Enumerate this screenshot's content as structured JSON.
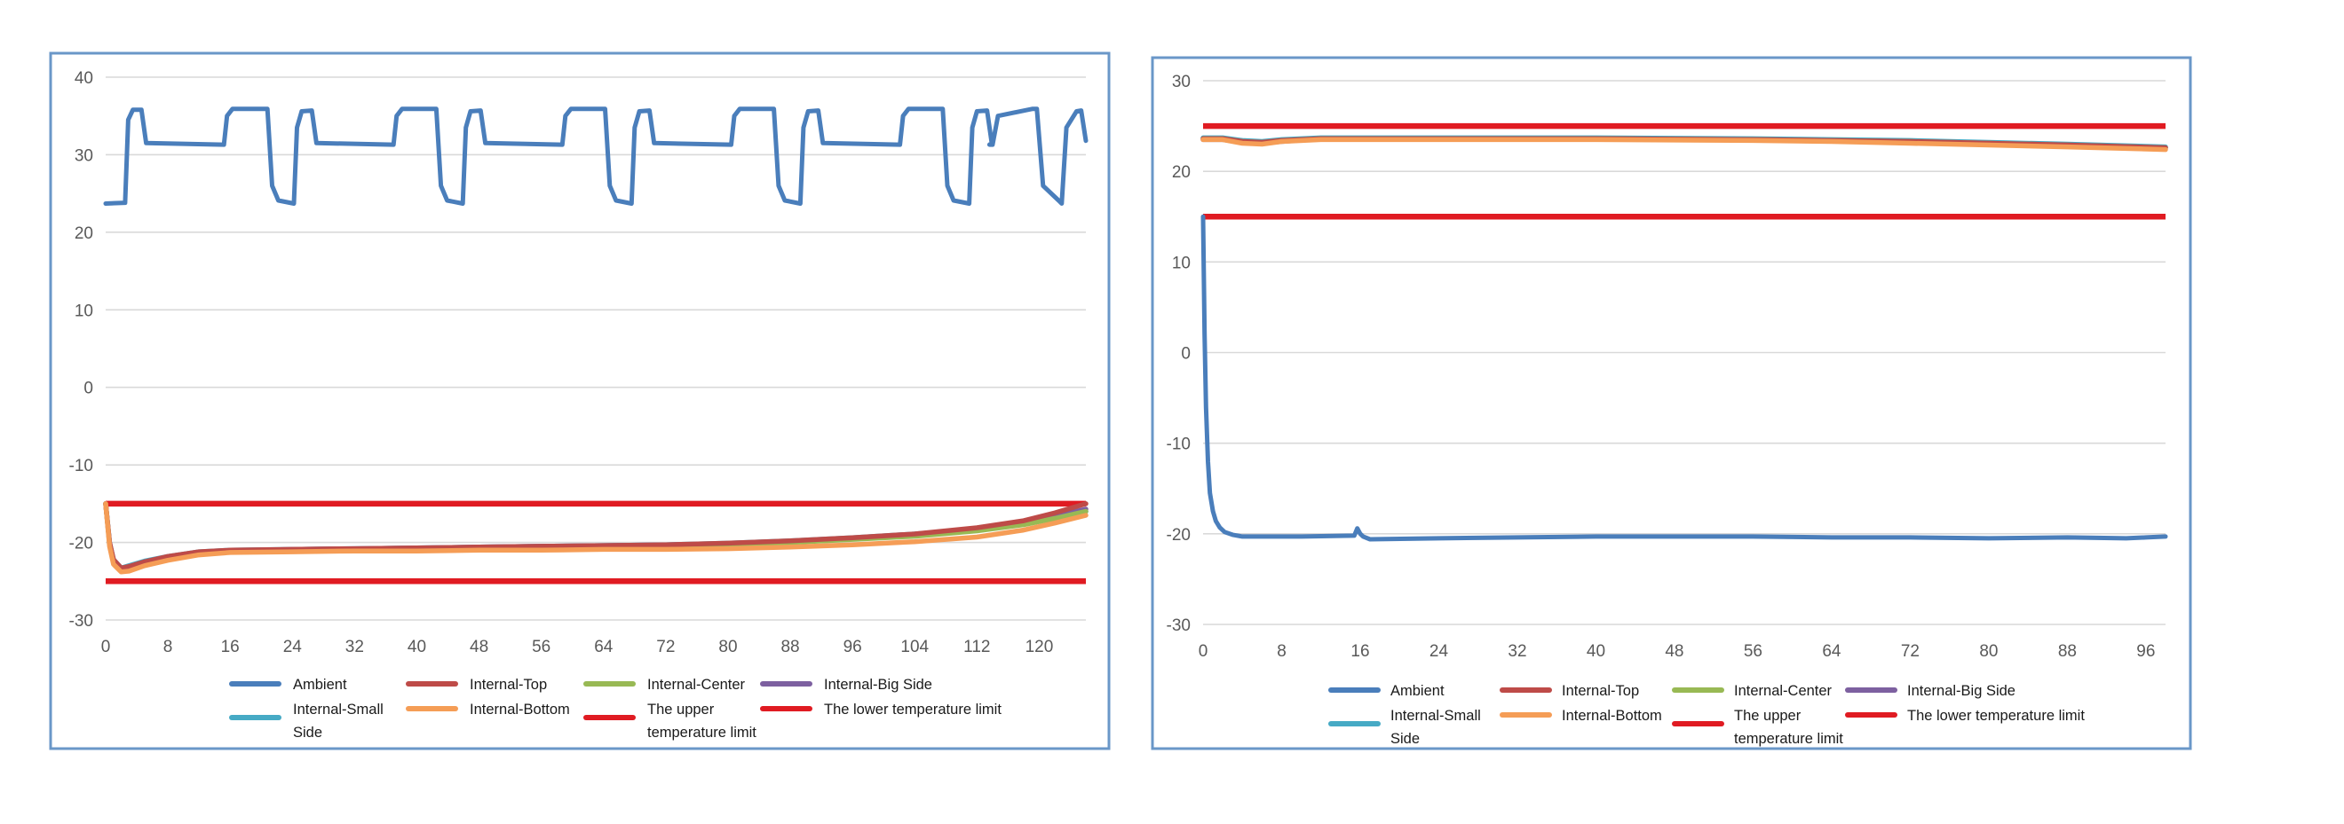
{
  "chart_data": [
    {
      "type": "line",
      "title": "",
      "xlabel": "",
      "ylabel": "",
      "xlim": [
        0,
        126
      ],
      "ylim": [
        -30,
        40
      ],
      "x_ticks": [
        "0",
        "8",
        "16",
        "24",
        "32",
        "40",
        "48",
        "56",
        "64",
        "72",
        "80",
        "88",
        "96",
        "104",
        "112",
        "120"
      ],
      "y_ticks": [
        "40",
        "30",
        "20",
        "10",
        "0",
        "-10",
        "-20",
        "-30"
      ],
      "grid": true,
      "legend_position": "bottom",
      "series": [
        {
          "name": "Ambient",
          "color": "#4a7ebb",
          "x": [
            0,
            2.5,
            2.9,
            3.5,
            4.6,
            5.2,
            15.2,
            15.6,
            16.3,
            20.8,
            21.4,
            22.2,
            24.2,
            24.6,
            25.2,
            26.5,
            27.1,
            37,
            37.4,
            38.1,
            42.5,
            43.1,
            43.9,
            45.9,
            46.3,
            46.9,
            48.2,
            48.8,
            58.7,
            59.1,
            59.8,
            64.2,
            64.8,
            65.6,
            67.6,
            68,
            68.6,
            69.9,
            70.5,
            80.4,
            80.8,
            81.5,
            85.9,
            86.5,
            87.3,
            89.3,
            89.7,
            90.3,
            91.6,
            92.2,
            102.1,
            102.5,
            103.2,
            107.6,
            108.2,
            109,
            111,
            111.4,
            112,
            113.3,
            113.9,
            113.6,
            114,
            114.7,
            119.1,
            119.7,
            120.5,
            122.5,
            122.9,
            123.5,
            124.8,
            125.4,
            126
          ],
          "y": [
            23.7,
            23.8,
            34.5,
            35.8,
            35.8,
            31.5,
            31.3,
            35,
            35.9,
            35.9,
            26,
            24.1,
            23.7,
            33.5,
            35.6,
            35.7,
            31.5,
            31.3,
            35,
            35.9,
            35.9,
            26,
            24.1,
            23.7,
            33.5,
            35.6,
            35.7,
            31.5,
            31.3,
            35,
            35.9,
            35.9,
            26,
            24.1,
            23.7,
            33.5,
            35.6,
            35.7,
            31.5,
            31.3,
            35,
            35.9,
            35.9,
            26,
            24.1,
            23.7,
            33.5,
            35.6,
            35.7,
            31.5,
            31.3,
            35,
            35.9,
            35.9,
            26,
            24.1,
            23.7,
            33.5,
            35.6,
            35.7,
            31.5,
            31.3,
            31.3,
            35,
            35.9,
            35.9,
            26,
            24.1,
            23.7,
            33.5,
            35.6,
            35.7,
            31.8
          ]
        },
        {
          "name": "Internal-Top",
          "color": "#be4b48",
          "x": [
            0,
            0.5,
            1,
            2,
            3,
            5,
            8,
            12,
            16,
            24,
            32,
            40,
            48,
            56,
            64,
            72,
            80,
            88,
            96,
            104,
            112,
            118,
            122,
            126
          ],
          "y": [
            -15,
            -20,
            -22.2,
            -23.3,
            -23.1,
            -22.5,
            -21.8,
            -21.2,
            -21,
            -20.9,
            -20.8,
            -20.7,
            -20.6,
            -20.5,
            -20.4,
            -20.3,
            -20.1,
            -19.8,
            -19.4,
            -18.9,
            -18.1,
            -17.2,
            -16.2,
            -15
          ]
        },
        {
          "name": "Internal-Center",
          "color": "#98b954",
          "x": [
            0,
            0.5,
            1,
            2,
            3,
            5,
            8,
            12,
            16,
            24,
            32,
            40,
            48,
            56,
            64,
            72,
            80,
            88,
            96,
            104,
            112,
            118,
            122,
            126
          ],
          "y": [
            -15,
            -20.2,
            -22.4,
            -23.5,
            -23.3,
            -22.7,
            -22,
            -21.3,
            -21.1,
            -21,
            -20.9,
            -20.8,
            -20.7,
            -20.6,
            -20.5,
            -20.4,
            -20.3,
            -20,
            -19.6,
            -19.2,
            -18.5,
            -17.7,
            -16.9,
            -16
          ]
        },
        {
          "name": "Internal-Big Side",
          "color": "#7d60a0",
          "x": [
            0,
            0.5,
            1,
            2,
            3,
            5,
            8,
            12,
            16,
            24,
            32,
            40,
            48,
            56,
            64,
            72,
            80,
            88,
            96,
            104,
            112,
            118,
            122,
            126
          ],
          "y": [
            -15,
            -20.1,
            -22.3,
            -23.4,
            -23.2,
            -22.6,
            -21.9,
            -21.3,
            -21.1,
            -20.9,
            -20.8,
            -20.7,
            -20.6,
            -20.5,
            -20.4,
            -20.3,
            -20.2,
            -19.9,
            -19.5,
            -19,
            -18.3,
            -17.4,
            -16.6,
            -15.7
          ]
        },
        {
          "name": "Internal-Small Side",
          "color": "#46aac5",
          "x": [
            0,
            0.5,
            1,
            2,
            3,
            5,
            8,
            12,
            16,
            24,
            32,
            40,
            48,
            56,
            64,
            72,
            80,
            88,
            96,
            104,
            112,
            118,
            122,
            126
          ],
          "y": [
            -15,
            -20,
            -22.2,
            -23.3,
            -23,
            -22.4,
            -21.8,
            -21.2,
            -21,
            -20.9,
            -20.8,
            -20.7,
            -20.6,
            -20.5,
            -20.4,
            -20.3,
            -20.1,
            -19.8,
            -19.4,
            -18.9,
            -18.3,
            -17.5,
            -16.8,
            -16
          ]
        },
        {
          "name": "Internal-Bottom",
          "color": "#f59d56",
          "x": [
            0,
            0.5,
            1,
            2,
            3,
            5,
            8,
            12,
            16,
            24,
            32,
            40,
            48,
            56,
            64,
            72,
            80,
            88,
            96,
            104,
            112,
            118,
            122,
            126
          ],
          "y": [
            -15,
            -20.5,
            -22.8,
            -23.8,
            -23.7,
            -23,
            -22.3,
            -21.6,
            -21.3,
            -21.2,
            -21.1,
            -21.1,
            -21,
            -21,
            -20.9,
            -20.9,
            -20.8,
            -20.6,
            -20.3,
            -19.9,
            -19.3,
            -18.4,
            -17.5,
            -16.5
          ]
        },
        {
          "name": "The upper temperature limit",
          "color": "#e01b22",
          "x": [
            0,
            126
          ],
          "y": [
            -15,
            -15
          ]
        },
        {
          "name": "The lower temperature limit",
          "color": "#e01b22",
          "x": [
            0,
            126
          ],
          "y": [
            -25,
            -25
          ]
        }
      ]
    },
    {
      "type": "line",
      "title": "",
      "xlabel": "",
      "ylabel": "",
      "xlim": [
        0,
        98
      ],
      "ylim": [
        -30,
        30
      ],
      "x_ticks": [
        "0",
        "8",
        "16",
        "24",
        "32",
        "40",
        "48",
        "56",
        "64",
        "72",
        "80",
        "88",
        "96"
      ],
      "y_ticks": [
        "30",
        "20",
        "10",
        "0",
        "-10",
        "-20",
        "-30"
      ],
      "grid": true,
      "legend_position": "bottom",
      "series": [
        {
          "name": "Ambient",
          "color": "#4a7ebb",
          "x": [
            0,
            0.15,
            0.3,
            0.5,
            0.7,
            1,
            1.3,
            1.7,
            2.2,
            3,
            4,
            6,
            10,
            15.4,
            15.7,
            16,
            16.3,
            17,
            24,
            32,
            40,
            48,
            56,
            64,
            72,
            80,
            88,
            94,
            96,
            98
          ],
          "y": [
            15,
            2,
            -6,
            -12,
            -15.5,
            -17.5,
            -18.6,
            -19.3,
            -19.8,
            -20.1,
            -20.3,
            -20.3,
            -20.3,
            -20.2,
            -19.4,
            -20,
            -20.3,
            -20.6,
            -20.5,
            -20.4,
            -20.3,
            -20.3,
            -20.3,
            -20.4,
            -20.4,
            -20.5,
            -20.4,
            -20.5,
            -20.4,
            -20.3
          ]
        },
        {
          "name": "Internal-Top",
          "color": "#be4b48",
          "x": [
            0,
            2,
            4,
            6,
            8,
            12,
            24,
            40,
            56,
            64,
            72,
            80,
            88,
            98
          ],
          "y": [
            23.6,
            23.6,
            23.3,
            23.2,
            23.4,
            23.6,
            23.6,
            23.6,
            23.5,
            23.4,
            23.3,
            23.1,
            22.9,
            22.6
          ]
        },
        {
          "name": "Internal-Center",
          "color": "#98b954",
          "x": [
            0,
            2,
            4,
            6,
            8,
            12,
            24,
            40,
            56,
            64,
            72,
            80,
            88,
            98
          ],
          "y": [
            23.6,
            23.6,
            23.3,
            23.2,
            23.4,
            23.6,
            23.6,
            23.6,
            23.5,
            23.4,
            23.3,
            23.1,
            22.9,
            22.6
          ]
        },
        {
          "name": "Internal-Big Side",
          "color": "#7d60a0",
          "x": [
            0,
            2,
            4,
            6,
            8,
            12,
            24,
            40,
            56,
            64,
            72,
            80,
            88,
            98
          ],
          "y": [
            23.5,
            23.5,
            23.2,
            23.1,
            23.3,
            23.6,
            23.6,
            23.6,
            23.5,
            23.4,
            23.3,
            23.1,
            22.9,
            22.6
          ]
        },
        {
          "name": "Internal-Small Side",
          "color": "#46aac5",
          "x": [
            0,
            2,
            4,
            6,
            8,
            12,
            24,
            40,
            56,
            64,
            72,
            80,
            88,
            98
          ],
          "y": [
            23.7,
            23.7,
            23.4,
            23.3,
            23.5,
            23.7,
            23.7,
            23.7,
            23.6,
            23.5,
            23.4,
            23.2,
            23,
            22.7
          ]
        },
        {
          "name": "Internal-Bottom",
          "color": "#f59d56",
          "x": [
            0,
            2,
            4,
            6,
            8,
            12,
            24,
            40,
            56,
            64,
            72,
            80,
            88,
            98
          ],
          "y": [
            23.5,
            23.5,
            23.1,
            23,
            23.3,
            23.5,
            23.5,
            23.5,
            23.4,
            23.3,
            23.1,
            22.9,
            22.7,
            22.4
          ]
        },
        {
          "name": "The upper temperature limit",
          "color": "#e01b22",
          "x": [
            0,
            98
          ],
          "y": [
            25,
            25
          ]
        },
        {
          "name": "The lower temperature limit",
          "color": "#e01b22",
          "x": [
            0,
            98
          ],
          "y": [
            15,
            15
          ]
        }
      ]
    }
  ],
  "legend": {
    "items": [
      {
        "line1": "Ambient",
        "line2": "",
        "color": "#4a7ebb"
      },
      {
        "line1": "Internal-Top",
        "line2": "",
        "color": "#be4b48"
      },
      {
        "line1": "Internal-Center",
        "line2": "",
        "color": "#98b954"
      },
      {
        "line1": "Internal-Big Side",
        "line2": "",
        "color": "#7d60a0"
      },
      {
        "line1": "Internal-Small",
        "line2": "Side",
        "color": "#46aac5"
      },
      {
        "line1": "Internal-Bottom",
        "line2": "",
        "color": "#f59d56"
      },
      {
        "line1": "The upper",
        "line2": "temperature limit",
        "color": "#e01b22"
      },
      {
        "line1": "The lower temperature limit",
        "line2": "",
        "color": "#e01b22"
      }
    ]
  },
  "colors": {
    "panel_border": "#6a97c8",
    "gridline": "#d9d9d9",
    "tick_text": "#595959"
  }
}
